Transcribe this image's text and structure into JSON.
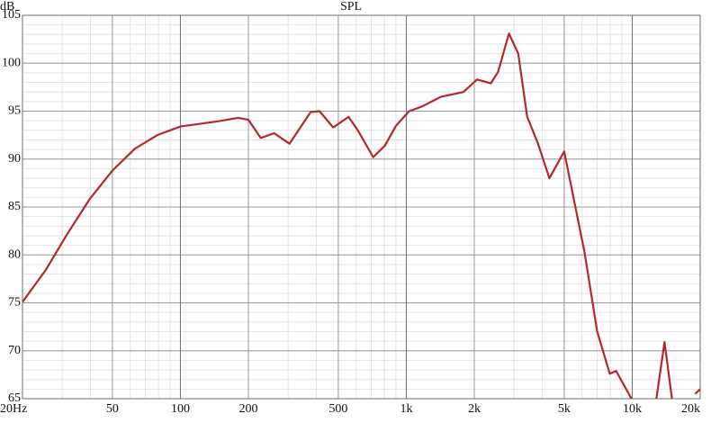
{
  "chart_data": {
    "type": "line",
    "title": "SPL",
    "y_label": "dB",
    "x": [
      20,
      25.3,
      31.6,
      39.6,
      50,
      63,
      79,
      100,
      143,
      180,
      200,
      227,
      260,
      304,
      377,
      413,
      475,
      555,
      610,
      714,
      804,
      902,
      1030,
      1177,
      1424,
      1791,
      2057,
      2368,
      2550,
      2847,
      3130,
      3430,
      3830,
      4300,
      5000,
      5550,
      6150,
      7000,
      7960,
      8490,
      9050,
      9930,
      10500,
      12800,
      13900,
      15000,
      16000,
      19000,
      20000
    ],
    "series": [
      {
        "name": "SPL",
        "color": "#b3282d",
        "values": [
          75.1,
          78.4,
          82.2,
          85.8,
          88.8,
          91.1,
          92.5,
          93.4,
          93.9,
          94.3,
          94.1,
          92.2,
          92.7,
          91.6,
          94.9,
          95.0,
          93.3,
          94.4,
          93.0,
          90.2,
          91.4,
          93.5,
          95.0,
          95.5,
          96.5,
          97.0,
          98.3,
          97.9,
          99.1,
          103.1,
          101.0,
          94.4,
          91.6,
          88.0,
          90.8,
          85.5,
          80.3,
          72.0,
          67.6,
          67.9,
          66.7,
          65.0,
          null,
          65.0,
          70.9,
          65.0,
          null,
          65.5,
          66.0
        ]
      }
    ],
    "xlim": [
      20,
      20000
    ],
    "ylim": [
      65,
      105
    ],
    "log_x": true,
    "grid": true,
    "xticks": [
      {
        "value": 20,
        "label": "20Hz"
      },
      50,
      100,
      200,
      500,
      {
        "value": 1000,
        "label": "1k"
      },
      {
        "value": 2000,
        "label": "2k"
      },
      {
        "value": 5000,
        "label": "5k"
      },
      {
        "value": 10000,
        "label": "10k"
      },
      {
        "value": 20000,
        "label": "20k"
      }
    ],
    "yticks": [
      65,
      70,
      75,
      80,
      85,
      90,
      95,
      100,
      105
    ]
  }
}
